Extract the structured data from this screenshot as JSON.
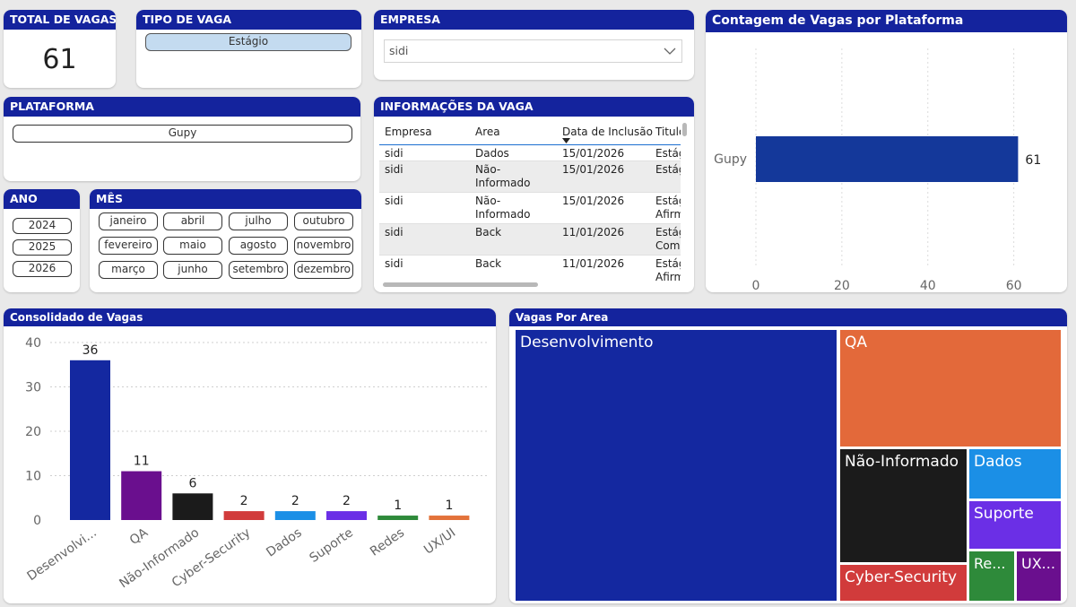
{
  "total_vagas": {
    "title": "TOTAL DE VAGAS",
    "value": "61"
  },
  "tipo_vaga": {
    "title": "TIPO DE VAGA",
    "options": [
      "Estágio"
    ]
  },
  "empresa": {
    "title": "EMPRESA",
    "selected": "sidi"
  },
  "plataforma": {
    "title": "PLATAFORMA",
    "options": [
      "Gupy"
    ]
  },
  "ano": {
    "title": "ANO",
    "options": [
      "2024",
      "2025",
      "2026"
    ]
  },
  "mes": {
    "title": "MÊS",
    "options": [
      "janeiro",
      "abril",
      "julho",
      "outubro",
      "fevereiro",
      "maio",
      "agosto",
      "novembro",
      "março",
      "junho",
      "setembro",
      "dezembro"
    ]
  },
  "info_vaga": {
    "title": "INFORMAÇÕES DA VAGA",
    "columns": [
      "Empresa",
      "Area",
      "Data de Inclusão",
      "Titulo"
    ],
    "rows": [
      [
        "sidi",
        "Dados",
        "15/01/2026",
        "Estág"
      ],
      [
        "sidi",
        "Não-\nInformado",
        "15/01/2026",
        "Estág"
      ],
      [
        "sidi",
        "Não-\nInformado",
        "15/01/2026",
        "Estág\nAfirm"
      ],
      [
        "sidi",
        "Back",
        "11/01/2026",
        "Estág\nComp"
      ],
      [
        "sidi",
        "Back",
        "11/01/2026",
        "Estág\nAfirm"
      ]
    ]
  },
  "plataforma_chart": {
    "title": "Contagem de Vagas por Plataforma",
    "chart_data": {
      "type": "bar",
      "orientation": "horizontal",
      "categories": [
        "Gupy"
      ],
      "values": [
        61
      ],
      "data_labels": [
        "61"
      ],
      "xlim": [
        0,
        63
      ],
      "ticks": [
        "0",
        "20",
        "40",
        "60"
      ],
      "color": "#14389a"
    }
  },
  "consolidado": {
    "title": "Consolidado de Vagas",
    "chart_data": {
      "type": "bar",
      "categories": [
        "Desenvolvi...",
        "QA",
        "Não-Informado",
        "Cyber-Security",
        "Dados",
        "Suporte",
        "Redes",
        "UX/UI"
      ],
      "values": [
        36,
        11,
        6,
        2,
        2,
        2,
        1,
        1
      ],
      "colors": [
        "#1428a0",
        "#6a0f8e",
        "#1b1b1b",
        "#d13b3b",
        "#1b8fe6",
        "#6b2fe6",
        "#2e8a3a",
        "#e3723a"
      ],
      "ylim": [
        0,
        40
      ],
      "yticks": [
        "0",
        "10",
        "20",
        "30",
        "40"
      ],
      "grid": true
    }
  },
  "vagas_area": {
    "title": "Vagas Por Area",
    "chart_data": {
      "type": "treemap",
      "labels": [
        "Desenvolvimento",
        "QA",
        "Não-Informado",
        "Dados",
        "Suporte",
        "Cyber-Security",
        "Re...",
        "UX..."
      ],
      "values": [
        36,
        11,
        6,
        2,
        2,
        2,
        1,
        1
      ],
      "colors": [
        "#1428a0",
        "#e3693a",
        "#1b1b1b",
        "#1b8fe6",
        "#6b2fe6",
        "#d13b3b",
        "#2e8a3a",
        "#6a0f8e"
      ]
    }
  }
}
